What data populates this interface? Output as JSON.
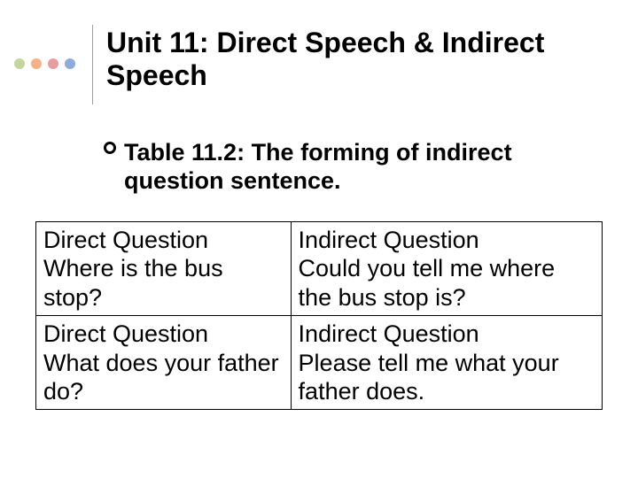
{
  "title": "Unit 11: Direct Speech & Indirect Speech",
  "subtitle": "Table 11.2: The forming of indirect question sentence.",
  "decor": {
    "dot_colors": [
      "#c3d69b",
      "#f4b183",
      "#e89ca0",
      "#8faadc"
    ],
    "vline_color": "#9aa0a6",
    "title_fontsize": 32,
    "subtitle_fontsize": 27,
    "cell_fontsize": 27,
    "text_color": "#000000",
    "background": "#ffffff"
  },
  "table": {
    "rows": [
      {
        "left_label": "Direct Question",
        "left_body": "Where is the bus stop?",
        "right_label": "Indirect Question",
        "right_body": "Could you tell me where the bus stop is?"
      },
      {
        "left_label": "Direct Question",
        "left_body": "What does your father do?",
        "right_label": "Indirect Question",
        "right_body": "Please tell me what your father does."
      }
    ]
  }
}
